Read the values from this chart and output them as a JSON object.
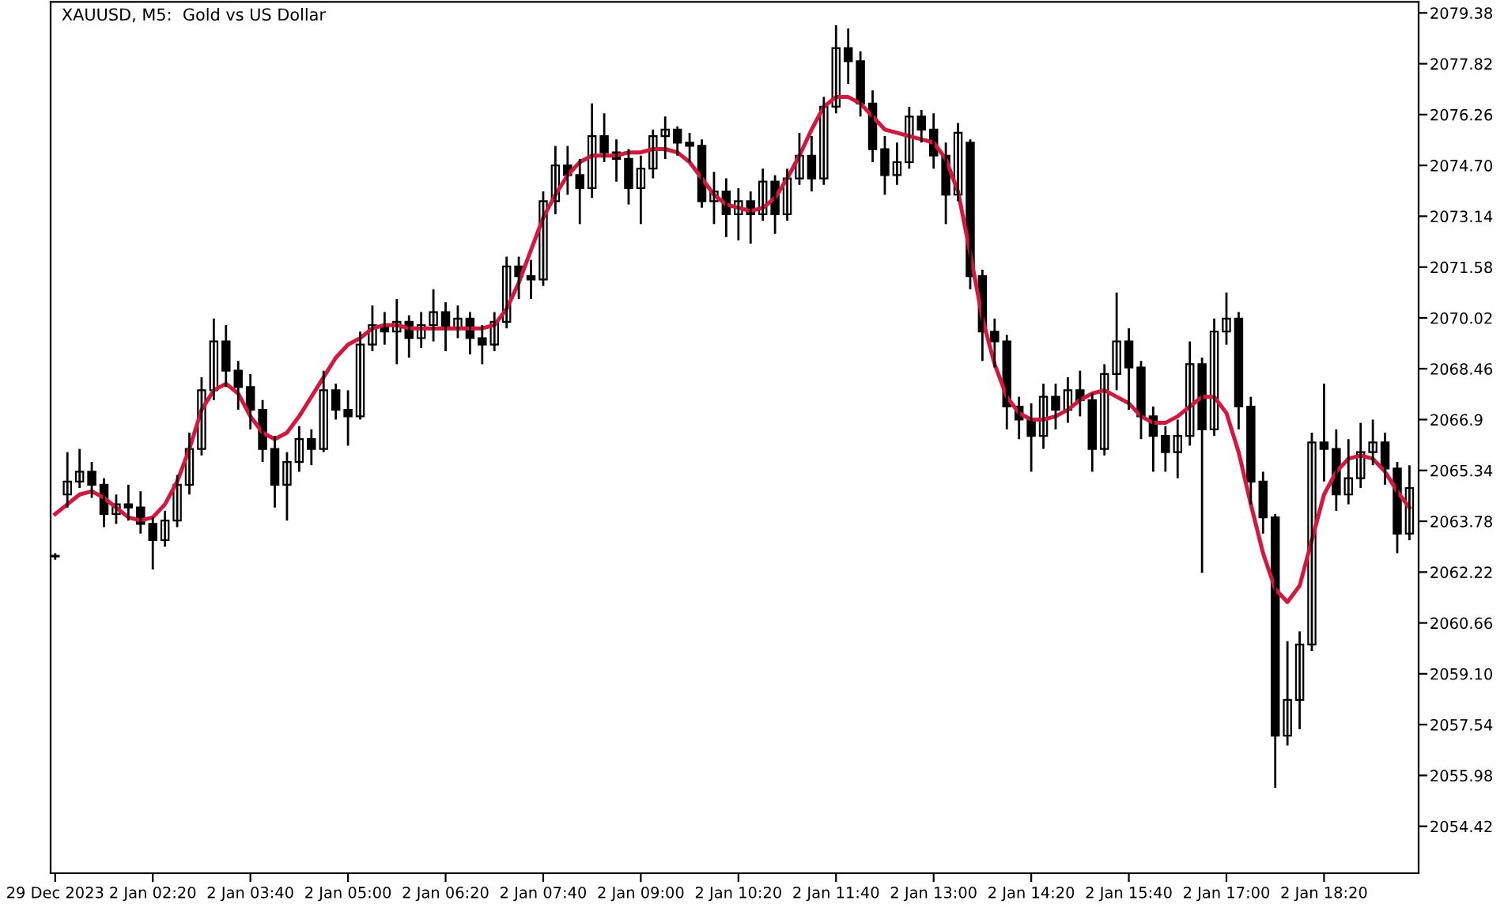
{
  "chart_data": {
    "type": "candlestick",
    "title": "XAUUSD, M5:  Gold vs US Dollar",
    "categories": [
      "29 Dec 2023",
      null,
      null,
      null,
      null,
      null,
      null,
      null,
      "2 Jan 02:20",
      null,
      null,
      null,
      null,
      null,
      null,
      null,
      "2 Jan 03:40",
      null,
      null,
      null,
      null,
      null,
      null,
      null,
      "2 Jan 05:00",
      null,
      null,
      null,
      null,
      null,
      null,
      null,
      "2 Jan 06:20",
      null,
      null,
      null,
      null,
      null,
      null,
      null,
      "2 Jan 07:40",
      null,
      null,
      null,
      null,
      null,
      null,
      null,
      "2 Jan 09:00",
      null,
      null,
      null,
      null,
      null,
      null,
      null,
      "2 Jan 10:20",
      null,
      null,
      null,
      null,
      null,
      null,
      null,
      "2 Jan 11:40",
      null,
      null,
      null,
      null,
      null,
      null,
      null,
      "2 Jan 13:00",
      null,
      null,
      null,
      null,
      null,
      null,
      null,
      "2 Jan 14:20",
      null,
      null,
      null,
      null,
      null,
      null,
      null,
      "2 Jan 15:40",
      null,
      null,
      null,
      null,
      null,
      null,
      null,
      "2 Jan 17:00",
      null,
      null,
      null,
      null,
      null,
      null,
      null,
      "2 Jan 18:20",
      null,
      null,
      null,
      null,
      null,
      null,
      null
    ],
    "color": "#000000",
    "ohlc": [
      [
        2062.7,
        2062.8,
        2062.6,
        2062.7
      ],
      [
        2064.6,
        2065.9,
        2064.2,
        2065.0
      ],
      [
        2065.0,
        2066.0,
        2064.8,
        2065.3
      ],
      [
        2065.3,
        2065.6,
        2064.5,
        2064.9
      ],
      [
        2064.9,
        2065.1,
        2063.6,
        2064.0
      ],
      [
        2064.0,
        2064.6,
        2063.7,
        2064.3
      ],
      [
        2064.3,
        2064.9,
        2063.8,
        2064.2
      ],
      [
        2064.2,
        2064.7,
        2063.4,
        2063.7
      ],
      [
        2063.7,
        2063.9,
        2062.3,
        2063.2
      ],
      [
        2063.2,
        2064.1,
        2063.0,
        2063.8
      ],
      [
        2063.8,
        2065.2,
        2063.6,
        2064.9
      ],
      [
        2064.9,
        2066.5,
        2064.6,
        2066.0
      ],
      [
        2066.0,
        2068.2,
        2065.8,
        2067.8
      ],
      [
        2067.8,
        2070.0,
        2067.5,
        2069.3
      ],
      [
        2069.3,
        2069.8,
        2067.9,
        2068.4
      ],
      [
        2068.4,
        2068.7,
        2067.2,
        2067.9
      ],
      [
        2067.9,
        2068.3,
        2066.6,
        2067.2
      ],
      [
        2067.2,
        2067.5,
        2065.6,
        2066.0
      ],
      [
        2066.0,
        2066.4,
        2064.2,
        2064.9
      ],
      [
        2064.9,
        2065.9,
        2063.8,
        2065.6
      ],
      [
        2065.6,
        2066.7,
        2065.3,
        2066.3
      ],
      [
        2066.3,
        2066.6,
        2065.5,
        2066.0
      ],
      [
        2066.0,
        2068.4,
        2065.9,
        2067.8
      ],
      [
        2067.8,
        2068.0,
        2066.9,
        2067.2
      ],
      [
        2067.2,
        2067.8,
        2066.1,
        2067.0
      ],
      [
        2067.0,
        2069.6,
        2066.9,
        2069.2
      ],
      [
        2069.2,
        2070.4,
        2069.0,
        2069.8
      ],
      [
        2069.8,
        2070.2,
        2069.2,
        2069.6
      ],
      [
        2069.6,
        2070.6,
        2068.6,
        2069.9
      ],
      [
        2069.9,
        2070.1,
        2068.8,
        2069.4
      ],
      [
        2069.4,
        2070.2,
        2069.1,
        2069.8
      ],
      [
        2069.8,
        2070.9,
        2069.3,
        2070.2
      ],
      [
        2070.2,
        2070.5,
        2069.0,
        2069.7
      ],
      [
        2069.7,
        2070.4,
        2069.4,
        2070.0
      ],
      [
        2070.0,
        2070.2,
        2068.9,
        2069.4
      ],
      [
        2069.4,
        2069.8,
        2068.6,
        2069.2
      ],
      [
        2069.2,
        2070.2,
        2069.0,
        2069.9
      ],
      [
        2069.9,
        2071.9,
        2069.7,
        2071.6
      ],
      [
        2071.6,
        2071.9,
        2070.6,
        2071.3
      ],
      [
        2071.3,
        2071.8,
        2070.6,
        2071.2
      ],
      [
        2071.2,
        2073.9,
        2071.0,
        2073.6
      ],
      [
        2073.6,
        2075.3,
        2073.2,
        2074.7
      ],
      [
        2074.7,
        2075.3,
        2073.8,
        2074.4
      ],
      [
        2074.4,
        2074.9,
        2072.9,
        2074.0
      ],
      [
        2074.0,
        2076.6,
        2073.7,
        2075.6
      ],
      [
        2075.6,
        2076.3,
        2074.8,
        2075.1
      ],
      [
        2075.1,
        2075.5,
        2074.2,
        2074.9
      ],
      [
        2074.9,
        2075.2,
        2073.5,
        2074.0
      ],
      [
        2074.0,
        2075.0,
        2072.9,
        2074.6
      ],
      [
        2074.6,
        2075.8,
        2074.3,
        2075.6
      ],
      [
        2075.6,
        2076.2,
        2074.9,
        2075.8
      ],
      [
        2075.8,
        2075.9,
        2075.0,
        2075.4
      ],
      [
        2075.4,
        2075.7,
        2074.8,
        2075.3
      ],
      [
        2075.3,
        2075.5,
        2073.4,
        2073.6
      ],
      [
        2073.6,
        2074.5,
        2072.9,
        2073.9
      ],
      [
        2073.9,
        2074.3,
        2072.5,
        2073.2
      ],
      [
        2073.2,
        2074.0,
        2072.4,
        2073.6
      ],
      [
        2073.6,
        2073.9,
        2072.3,
        2073.2
      ],
      [
        2073.2,
        2074.6,
        2073.0,
        2074.2
      ],
      [
        2074.2,
        2074.4,
        2072.6,
        2073.2
      ],
      [
        2073.2,
        2074.6,
        2073.0,
        2074.3
      ],
      [
        2074.3,
        2075.7,
        2074.1,
        2075.0
      ],
      [
        2075.0,
        2075.6,
        2073.9,
        2074.3
      ],
      [
        2074.3,
        2076.8,
        2074.1,
        2076.5
      ],
      [
        2076.5,
        2079.0,
        2076.3,
        2078.3
      ],
      [
        2078.3,
        2078.9,
        2077.2,
        2077.9
      ],
      [
        2077.9,
        2078.2,
        2076.2,
        2076.6
      ],
      [
        2076.6,
        2077.0,
        2074.8,
        2075.2
      ],
      [
        2075.2,
        2075.6,
        2073.8,
        2074.4
      ],
      [
        2074.4,
        2075.4,
        2074.1,
        2074.8
      ],
      [
        2074.8,
        2076.5,
        2074.6,
        2076.2
      ],
      [
        2076.2,
        2076.4,
        2075.4,
        2075.8
      ],
      [
        2075.8,
        2076.3,
        2074.6,
        2075.0
      ],
      [
        2075.0,
        2075.4,
        2072.9,
        2073.8
      ],
      [
        2073.8,
        2076.0,
        2073.6,
        2075.7
      ],
      [
        2075.4,
        2075.5,
        2070.9,
        2071.3
      ],
      [
        2071.3,
        2071.5,
        2068.7,
        2069.6
      ],
      [
        2069.6,
        2070.0,
        2068.5,
        2069.3
      ],
      [
        2069.3,
        2069.5,
        2066.6,
        2067.3
      ],
      [
        2067.3,
        2067.6,
        2066.3,
        2066.9
      ],
      [
        2066.9,
        2067.4,
        2065.3,
        2066.4
      ],
      [
        2066.4,
        2068.0,
        2066.0,
        2067.6
      ],
      [
        2067.6,
        2068.0,
        2066.6,
        2067.2
      ],
      [
        2067.2,
        2068.2,
        2066.8,
        2067.8
      ],
      [
        2067.8,
        2068.4,
        2067.0,
        2067.5
      ],
      [
        2067.5,
        2067.7,
        2065.3,
        2066.0
      ],
      [
        2066.0,
        2068.6,
        2065.8,
        2068.3
      ],
      [
        2068.3,
        2070.8,
        2067.8,
        2069.3
      ],
      [
        2069.3,
        2069.7,
        2067.2,
        2068.5
      ],
      [
        2068.5,
        2068.7,
        2066.3,
        2067.0
      ],
      [
        2067.0,
        2067.3,
        2065.3,
        2066.4
      ],
      [
        2066.4,
        2066.7,
        2065.3,
        2065.9
      ],
      [
        2065.9,
        2066.9,
        2065.1,
        2066.4
      ],
      [
        2066.4,
        2069.3,
        2066.1,
        2068.6
      ],
      [
        2068.6,
        2068.8,
        2062.2,
        2066.6
      ],
      [
        2066.6,
        2070.0,
        2066.4,
        2069.6
      ],
      [
        2069.6,
        2070.8,
        2069.2,
        2070.0
      ],
      [
        2070.0,
        2070.2,
        2066.6,
        2067.3
      ],
      [
        2067.3,
        2067.6,
        2064.3,
        2065.0
      ],
      [
        2065.0,
        2065.3,
        2063.4,
        2063.9
      ],
      [
        2063.9,
        2064.0,
        2055.6,
        2057.2
      ],
      [
        2057.2,
        2060.1,
        2056.9,
        2058.3
      ],
      [
        2058.3,
        2060.4,
        2057.4,
        2060.0
      ],
      [
        2060.0,
        2066.5,
        2059.8,
        2066.2
      ],
      [
        2066.2,
        2068.0,
        2065.0,
        2066.0
      ],
      [
        2066.0,
        2066.6,
        2064.1,
        2064.6
      ],
      [
        2064.6,
        2066.3,
        2064.3,
        2065.1
      ],
      [
        2065.1,
        2066.8,
        2064.8,
        2065.9
      ],
      [
        2065.9,
        2066.9,
        2065.5,
        2066.2
      ],
      [
        2066.2,
        2066.5,
        2064.9,
        2065.4
      ],
      [
        2065.4,
        2065.6,
        2062.8,
        2063.4
      ],
      [
        2063.4,
        2065.5,
        2063.2,
        2064.8
      ]
    ],
    "series": [
      {
        "type": "line",
        "color": "#dc143c",
        "values": [
          2064.0,
          2064.3,
          2064.6,
          2064.7,
          2064.5,
          2064.2,
          2063.9,
          2063.8,
          2063.9,
          2064.3,
          2065.0,
          2066.0,
          2067.2,
          2067.8,
          2068.0,
          2067.7,
          2067.0,
          2066.5,
          2066.3,
          2066.5,
          2067.0,
          2067.6,
          2068.2,
          2068.8,
          2069.2,
          2069.4,
          2069.7,
          2069.8,
          2069.8,
          2069.7,
          2069.7,
          2069.7,
          2069.7,
          2069.7,
          2069.7,
          2069.7,
          2069.8,
          2070.3,
          2071.1,
          2072.1,
          2073.1,
          2073.8,
          2074.4,
          2074.8,
          2075.0,
          2075.0,
          2075.0,
          2075.1,
          2075.1,
          2075.2,
          2075.2,
          2075.1,
          2074.8,
          2074.3,
          2073.8,
          2073.5,
          2073.4,
          2073.3,
          2073.4,
          2073.7,
          2074.3,
          2075.0,
          2075.8,
          2076.5,
          2076.8,
          2076.8,
          2076.6,
          2076.2,
          2075.8,
          2075.7,
          2075.6,
          2075.5,
          2075.4,
          2074.9,
          2073.9,
          2072.0,
          2070.0,
          2068.6,
          2067.6,
          2067.1,
          2066.9,
          2066.9,
          2067.0,
          2067.2,
          2067.5,
          2067.7,
          2067.8,
          2067.6,
          2067.4,
          2067.0,
          2066.8,
          2066.8,
          2067.0,
          2067.3,
          2067.6,
          2067.6,
          2067.1,
          2065.9,
          2064.3,
          2062.8,
          2061.7,
          2061.3,
          2061.8,
          2063.2,
          2064.6,
          2065.3,
          2065.7,
          2065.8,
          2065.7,
          2065.3,
          2064.7,
          2064.2
        ]
      }
    ],
    "ylim": [
      2052.98,
      2079.72
    ],
    "yticks": [
      2054.42,
      2055.98,
      2057.54,
      {
        "value": 2059.1,
        "label": "2059.10"
      },
      2060.66,
      2062.22,
      2063.78,
      2065.34,
      2066.9,
      2068.46,
      2070.02,
      2071.58,
      2073.14,
      {
        "value": 2074.7,
        "label": "2074.70"
      },
      2076.26,
      2077.82,
      2079.38
    ],
    "grid": false,
    "legend": false
  }
}
